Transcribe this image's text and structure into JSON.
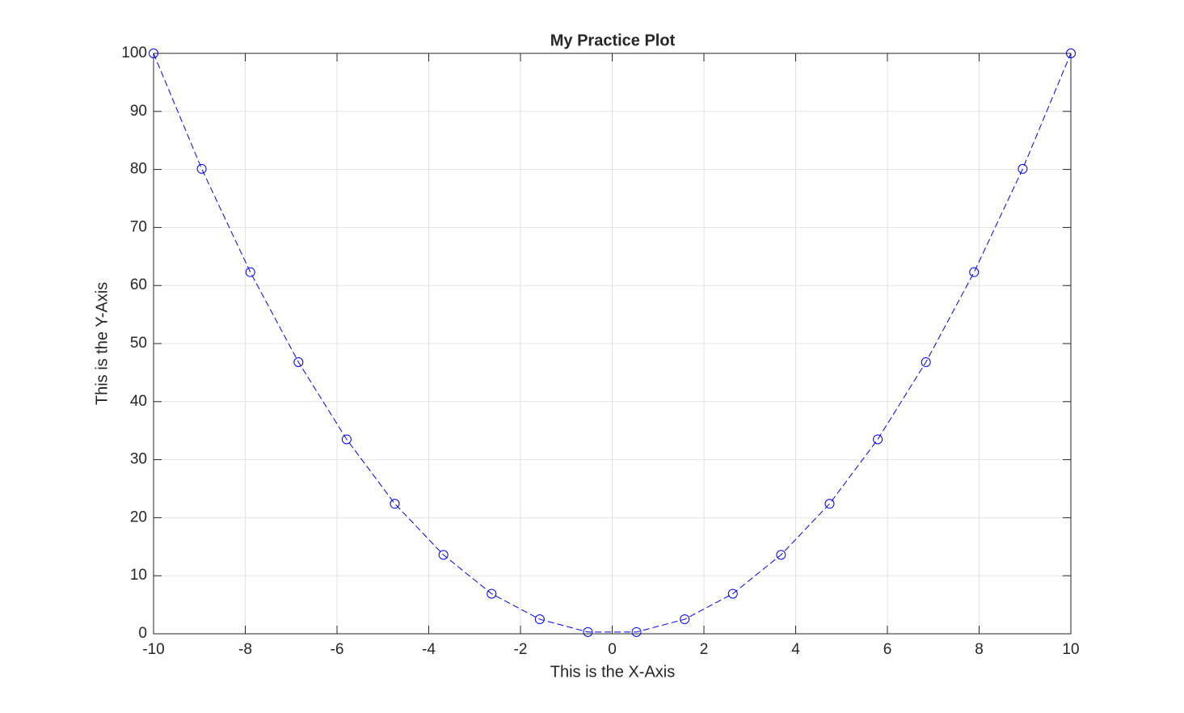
{
  "chart_data": {
    "type": "line",
    "title": "My Practice Plot",
    "x_label": "This is the X-Axis",
    "y_label": "This is the Y-Axis",
    "x": [
      -10,
      -8.95,
      -7.89,
      -6.84,
      -5.79,
      -4.74,
      -3.68,
      -2.63,
      -1.58,
      -0.53,
      0.53,
      1.58,
      2.63,
      3.68,
      4.74,
      5.79,
      6.84,
      7.89,
      8.95,
      10
    ],
    "values": [
      100,
      80.1,
      62.3,
      46.8,
      33.5,
      22.4,
      13.6,
      6.9,
      2.5,
      0.3,
      0.3,
      2.5,
      6.9,
      13.6,
      22.4,
      33.5,
      46.8,
      62.3,
      80.1,
      100
    ],
    "color": "#0000ff",
    "line_style": "dashed",
    "marker": "circle",
    "xlim": [
      -10,
      10
    ],
    "xticks": [
      -10,
      -8,
      -6,
      -4,
      -2,
      0,
      2,
      4,
      6,
      8,
      10
    ],
    "ylim": [
      0,
      100
    ],
    "yticks": [
      0,
      10,
      20,
      30,
      40,
      50,
      60,
      70,
      80,
      90,
      100
    ],
    "grid": true
  }
}
